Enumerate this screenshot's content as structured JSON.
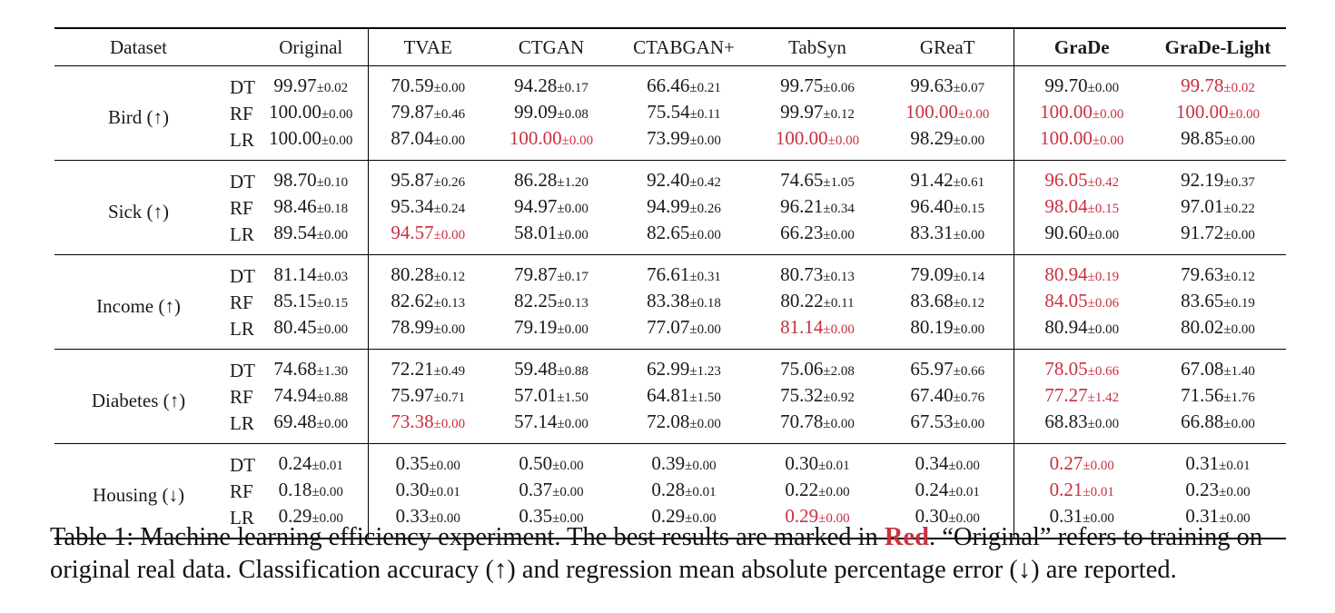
{
  "table": {
    "headers": [
      "Dataset",
      "",
      "Original",
      "TVAE",
      "CTGAN",
      "CTABGAN+",
      "TabSyn",
      "GReaT",
      "GraDe",
      "GraDe-Light"
    ],
    "bold_headers": [
      "GraDe",
      "GraDe-Light"
    ],
    "highlight_color": "#c8303f",
    "datasets": [
      {
        "name": "Bird (↑)",
        "rows": [
          {
            "method": "DT",
            "cells": [
              {
                "v": "99.97",
                "sd": "±0.02"
              },
              {
                "v": "70.59",
                "sd": "±0.00"
              },
              {
                "v": "94.28",
                "sd": "±0.17"
              },
              {
                "v": "66.46",
                "sd": "±0.21"
              },
              {
                "v": "99.75",
                "sd": "±0.06"
              },
              {
                "v": "99.63",
                "sd": "±0.07"
              },
              {
                "v": "99.70",
                "sd": "±0.00"
              },
              {
                "v": "99.78",
                "sd": "±0.02",
                "best": true
              }
            ]
          },
          {
            "method": "RF",
            "cells": [
              {
                "v": "100.00",
                "sd": "±0.00"
              },
              {
                "v": "79.87",
                "sd": "±0.46"
              },
              {
                "v": "99.09",
                "sd": "±0.08"
              },
              {
                "v": "75.54",
                "sd": "±0.11"
              },
              {
                "v": "99.97",
                "sd": "±0.12"
              },
              {
                "v": "100.00",
                "sd": "±0.00",
                "best": true
              },
              {
                "v": "100.00",
                "sd": "±0.00",
                "best": true
              },
              {
                "v": "100.00",
                "sd": "±0.00",
                "best": true
              }
            ]
          },
          {
            "method": "LR",
            "cells": [
              {
                "v": "100.00",
                "sd": "±0.00"
              },
              {
                "v": "87.04",
                "sd": "±0.00"
              },
              {
                "v": "100.00",
                "sd": "±0.00",
                "best": true
              },
              {
                "v": "73.99",
                "sd": "±0.00"
              },
              {
                "v": "100.00",
                "sd": "±0.00",
                "best": true
              },
              {
                "v": "98.29",
                "sd": "±0.00"
              },
              {
                "v": "100.00",
                "sd": "±0.00",
                "best": true
              },
              {
                "v": "98.85",
                "sd": "±0.00"
              }
            ]
          }
        ]
      },
      {
        "name": "Sick (↑)",
        "rows": [
          {
            "method": "DT",
            "cells": [
              {
                "v": "98.70",
                "sd": "±0.10"
              },
              {
                "v": "95.87",
                "sd": "±0.26"
              },
              {
                "v": "86.28",
                "sd": "±1.20"
              },
              {
                "v": "92.40",
                "sd": "±0.42"
              },
              {
                "v": "74.65",
                "sd": "±1.05"
              },
              {
                "v": "91.42",
                "sd": "±0.61"
              },
              {
                "v": "96.05",
                "sd": "±0.42",
                "best": true
              },
              {
                "v": "92.19",
                "sd": "±0.37"
              }
            ]
          },
          {
            "method": "RF",
            "cells": [
              {
                "v": "98.46",
                "sd": "±0.18"
              },
              {
                "v": "95.34",
                "sd": "±0.24"
              },
              {
                "v": "94.97",
                "sd": "±0.00"
              },
              {
                "v": "94.99",
                "sd": "±0.26"
              },
              {
                "v": "96.21",
                "sd": "±0.34"
              },
              {
                "v": "96.40",
                "sd": "±0.15"
              },
              {
                "v": "98.04",
                "sd": "±0.15",
                "best": true
              },
              {
                "v": "97.01",
                "sd": "±0.22"
              }
            ]
          },
          {
            "method": "LR",
            "cells": [
              {
                "v": "89.54",
                "sd": "±0.00"
              },
              {
                "v": "94.57",
                "sd": "±0.00",
                "best": true
              },
              {
                "v": "58.01",
                "sd": "±0.00"
              },
              {
                "v": "82.65",
                "sd": "±0.00"
              },
              {
                "v": "66.23",
                "sd": "±0.00"
              },
              {
                "v": "83.31",
                "sd": "±0.00"
              },
              {
                "v": "90.60",
                "sd": "±0.00"
              },
              {
                "v": "91.72",
                "sd": "±0.00"
              }
            ]
          }
        ]
      },
      {
        "name": "Income (↑)",
        "rows": [
          {
            "method": "DT",
            "cells": [
              {
                "v": "81.14",
                "sd": "±0.03"
              },
              {
                "v": "80.28",
                "sd": "±0.12"
              },
              {
                "v": "79.87",
                "sd": "±0.17"
              },
              {
                "v": "76.61",
                "sd": "±0.31"
              },
              {
                "v": "80.73",
                "sd": "±0.13"
              },
              {
                "v": "79.09",
                "sd": "±0.14"
              },
              {
                "v": "80.94",
                "sd": "±0.19",
                "best": true
              },
              {
                "v": "79.63",
                "sd": "±0.12"
              }
            ]
          },
          {
            "method": "RF",
            "cells": [
              {
                "v": "85.15",
                "sd": "±0.15"
              },
              {
                "v": "82.62",
                "sd": "±0.13"
              },
              {
                "v": "82.25",
                "sd": "±0.13"
              },
              {
                "v": "83.38",
                "sd": "±0.18"
              },
              {
                "v": "80.22",
                "sd": "±0.11"
              },
              {
                "v": "83.68",
                "sd": "±0.12"
              },
              {
                "v": "84.05",
                "sd": "±0.06",
                "best": true
              },
              {
                "v": "83.65",
                "sd": "±0.19"
              }
            ]
          },
          {
            "method": "LR",
            "cells": [
              {
                "v": "80.45",
                "sd": "±0.00"
              },
              {
                "v": "78.99",
                "sd": "±0.00"
              },
              {
                "v": "79.19",
                "sd": "±0.00"
              },
              {
                "v": "77.07",
                "sd": "±0.00"
              },
              {
                "v": "81.14",
                "sd": "±0.00",
                "best": true
              },
              {
                "v": "80.19",
                "sd": "±0.00"
              },
              {
                "v": "80.94",
                "sd": "±0.00"
              },
              {
                "v": "80.02",
                "sd": "±0.00"
              }
            ]
          }
        ]
      },
      {
        "name": "Diabetes (↑)",
        "rows": [
          {
            "method": "DT",
            "cells": [
              {
                "v": "74.68",
                "sd": "±1.30"
              },
              {
                "v": "72.21",
                "sd": "±0.49"
              },
              {
                "v": "59.48",
                "sd": "±0.88"
              },
              {
                "v": "62.99",
                "sd": "±1.23"
              },
              {
                "v": "75.06",
                "sd": "±2.08"
              },
              {
                "v": "65.97",
                "sd": "±0.66"
              },
              {
                "v": "78.05",
                "sd": "±0.66",
                "best": true
              },
              {
                "v": "67.08",
                "sd": "±1.40"
              }
            ]
          },
          {
            "method": "RF",
            "cells": [
              {
                "v": "74.94",
                "sd": "±0.88"
              },
              {
                "v": "75.97",
                "sd": "±0.71"
              },
              {
                "v": "57.01",
                "sd": "±1.50"
              },
              {
                "v": "64.81",
                "sd": "±1.50"
              },
              {
                "v": "75.32",
                "sd": "±0.92"
              },
              {
                "v": "67.40",
                "sd": "±0.76"
              },
              {
                "v": "77.27",
                "sd": "±1.42",
                "best": true
              },
              {
                "v": "71.56",
                "sd": "±1.76"
              }
            ]
          },
          {
            "method": "LR",
            "cells": [
              {
                "v": "69.48",
                "sd": "±0.00"
              },
              {
                "v": "73.38",
                "sd": "±0.00",
                "best": true
              },
              {
                "v": "57.14",
                "sd": "±0.00"
              },
              {
                "v": "72.08",
                "sd": "±0.00"
              },
              {
                "v": "70.78",
                "sd": "±0.00"
              },
              {
                "v": "67.53",
                "sd": "±0.00"
              },
              {
                "v": "68.83",
                "sd": "±0.00"
              },
              {
                "v": "66.88",
                "sd": "±0.00"
              }
            ]
          }
        ]
      },
      {
        "name": "Housing (↓)",
        "rows": [
          {
            "method": "DT",
            "cells": [
              {
                "v": "0.24",
                "sd": "±0.01"
              },
              {
                "v": "0.35",
                "sd": "±0.00"
              },
              {
                "v": "0.50",
                "sd": "±0.00"
              },
              {
                "v": "0.39",
                "sd": "±0.00"
              },
              {
                "v": "0.30",
                "sd": "±0.01"
              },
              {
                "v": "0.34",
                "sd": "±0.00"
              },
              {
                "v": "0.27",
                "sd": "±0.00",
                "best": true
              },
              {
                "v": "0.31",
                "sd": "±0.01"
              }
            ]
          },
          {
            "method": "RF",
            "cells": [
              {
                "v": "0.18",
                "sd": "±0.00"
              },
              {
                "v": "0.30",
                "sd": "±0.01"
              },
              {
                "v": "0.37",
                "sd": "±0.00"
              },
              {
                "v": "0.28",
                "sd": "±0.01"
              },
              {
                "v": "0.22",
                "sd": "±0.00"
              },
              {
                "v": "0.24",
                "sd": "±0.01"
              },
              {
                "v": "0.21",
                "sd": "±0.01",
                "best": true
              },
              {
                "v": "0.23",
                "sd": "±0.00"
              }
            ]
          },
          {
            "method": "LR",
            "cells": [
              {
                "v": "0.29",
                "sd": "±0.00"
              },
              {
                "v": "0.33",
                "sd": "±0.00"
              },
              {
                "v": "0.35",
                "sd": "±0.00"
              },
              {
                "v": "0.29",
                "sd": "±0.00"
              },
              {
                "v": "0.29",
                "sd": "±0.00",
                "best": true
              },
              {
                "v": "0.30",
                "sd": "±0.00"
              },
              {
                "v": "0.31",
                "sd": "±0.00"
              },
              {
                "v": "0.31",
                "sd": "±0.00"
              }
            ]
          }
        ]
      }
    ]
  },
  "caption": {
    "part1": "Table 1: Machine learning efficiency experiment. The best results are marked in ",
    "red_word": "Red",
    "part2": ". “Original” refers to training on original real data. Classification accuracy (↑) and regression mean absolute percentage error (↓) are reported."
  }
}
